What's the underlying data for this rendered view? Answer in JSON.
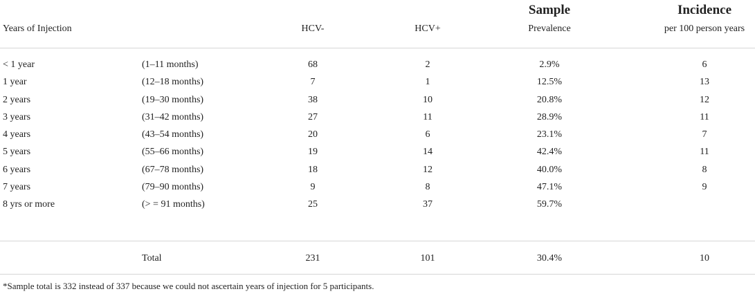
{
  "header": {
    "years": "Years of Injection",
    "hcv_neg": "HCV-",
    "hcv_pos": "HCV+",
    "sample_top": "Sample",
    "sample_sub": "Prevalence",
    "incidence_top": "Incidence",
    "incidence_sub": "per 100 person years"
  },
  "rows": [
    {
      "years": "< 1 year",
      "months": "(1–11 months)",
      "neg": "68",
      "pos": "2",
      "prev": "2.9%",
      "inc": "6"
    },
    {
      "years": "1 year",
      "months": "(12–18 months)",
      "neg": "7",
      "pos": "1",
      "prev": "12.5%",
      "inc": "13"
    },
    {
      "years": "2 years",
      "months": "(19–30 months)",
      "neg": "38",
      "pos": "10",
      "prev": "20.8%",
      "inc": "12"
    },
    {
      "years": "3 years",
      "months": "(31–42 months)",
      "neg": "27",
      "pos": "11",
      "prev": "28.9%",
      "inc": "11"
    },
    {
      "years": "4 years",
      "months": "(43–54 months)",
      "neg": "20",
      "pos": "6",
      "prev": "23.1%",
      "inc": "7"
    },
    {
      "years": "5 years",
      "months": "(55–66 months)",
      "neg": "19",
      "pos": "14",
      "prev": "42.4%",
      "inc": "11"
    },
    {
      "years": "6 years",
      "months": "(67–78 months)",
      "neg": "18",
      "pos": "12",
      "prev": "40.0%",
      "inc": "8"
    },
    {
      "years": "7 years",
      "months": "(79–90 months)",
      "neg": "9",
      "pos": "8",
      "prev": "47.1%",
      "inc": "9"
    },
    {
      "years": "8 yrs or more",
      "months": "(> = 91 months)",
      "neg": "25",
      "pos": "37",
      "prev": "59.7%",
      "inc": ""
    }
  ],
  "total": {
    "label": "Total",
    "neg": "231",
    "pos": "101",
    "prev": "30.4%",
    "inc": "10"
  },
  "footnote": "*Sample total is 332 instead of 337 because we could not ascertain years of injection for 5 participants."
}
